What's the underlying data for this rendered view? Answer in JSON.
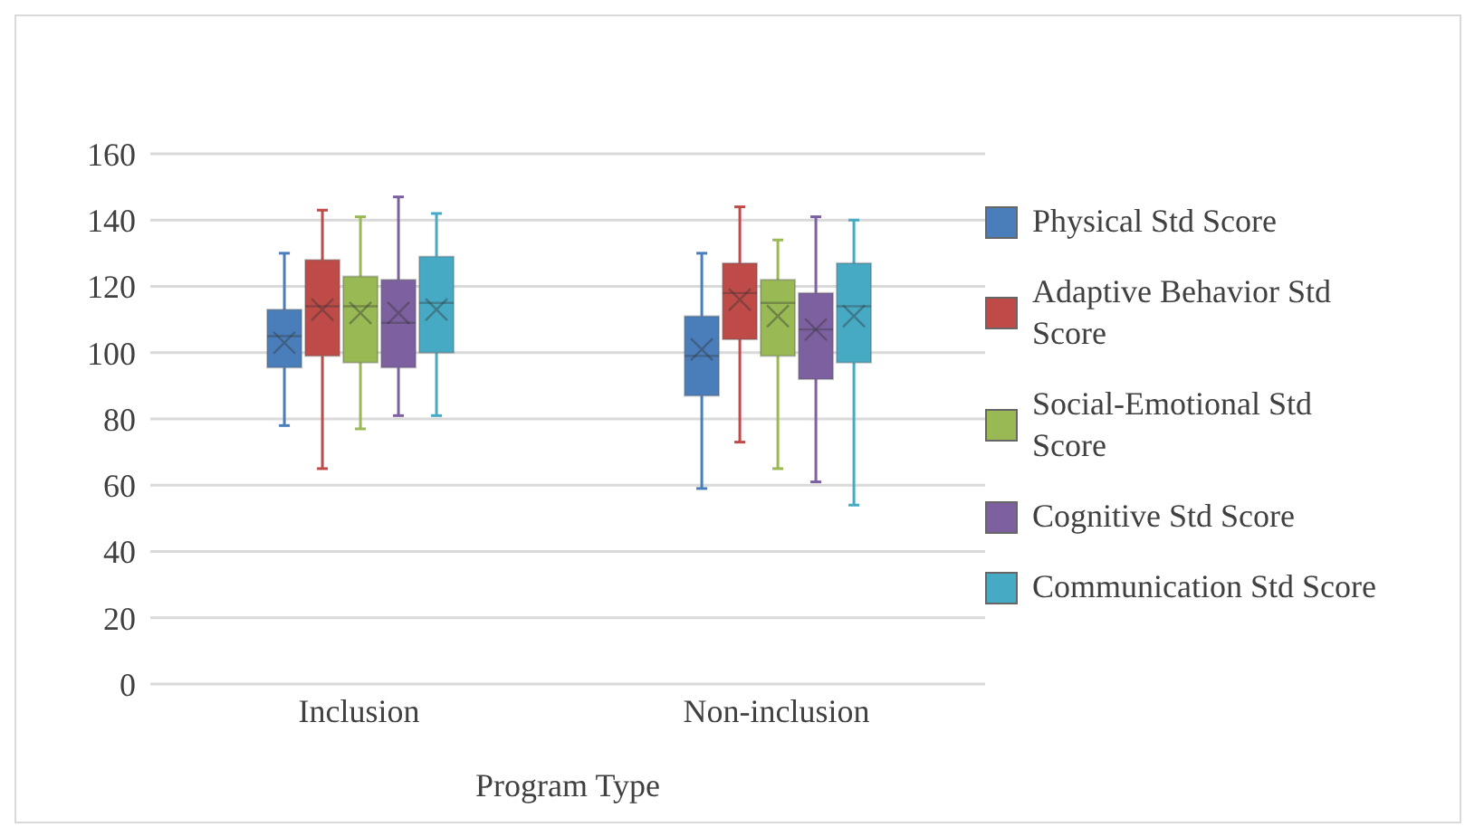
{
  "chart_data": {
    "type": "box",
    "xlabel": "Program Type",
    "categories": [
      "Inclusion",
      "Non-inclusion"
    ],
    "ylim": [
      0,
      160
    ],
    "yticks": [
      0,
      20,
      40,
      60,
      80,
      100,
      120,
      140,
      160
    ],
    "grid": "y",
    "legend": "right",
    "series": [
      {
        "name": "Physical Std Score",
        "color": "#4a7ebb",
        "boxes": [
          {
            "low": 78,
            "q1": 95.5,
            "median": 105,
            "q3": 113,
            "high": 130,
            "mean": 103
          },
          {
            "low": 59,
            "q1": 87,
            "median": 99,
            "q3": 111,
            "high": 130,
            "mean": 101
          }
        ]
      },
      {
        "name": "Adaptive Behavior Std Score",
        "color": "#be4b48",
        "boxes": [
          {
            "low": 65,
            "q1": 99,
            "median": 114,
            "q3": 128,
            "high": 143,
            "mean": 113
          },
          {
            "low": 73,
            "q1": 104,
            "median": 118,
            "q3": 127,
            "high": 144,
            "mean": 116
          }
        ]
      },
      {
        "name": "Social-Emotional Std Score",
        "color": "#98b954",
        "boxes": [
          {
            "low": 77,
            "q1": 97,
            "median": 114,
            "q3": 123,
            "high": 141,
            "mean": 112
          },
          {
            "low": 65,
            "q1": 99,
            "median": 115,
            "q3": 122,
            "high": 134,
            "mean": 111
          }
        ]
      },
      {
        "name": "Cognitive Std Score",
        "color": "#7d60a0",
        "boxes": [
          {
            "low": 81,
            "q1": 95.5,
            "median": 109,
            "q3": 122,
            "high": 147,
            "mean": 112
          },
          {
            "low": 61,
            "q1": 92,
            "median": 107,
            "q3": 118,
            "high": 141,
            "mean": 107
          }
        ]
      },
      {
        "name": "Communication Std Score",
        "color": "#46aac5",
        "boxes": [
          {
            "low": 81,
            "q1": 100,
            "median": 115,
            "q3": 129,
            "high": 142,
            "mean": 113
          },
          {
            "low": 54,
            "q1": 97,
            "median": 114,
            "q3": 127,
            "high": 140,
            "mean": 111
          }
        ]
      }
    ]
  }
}
